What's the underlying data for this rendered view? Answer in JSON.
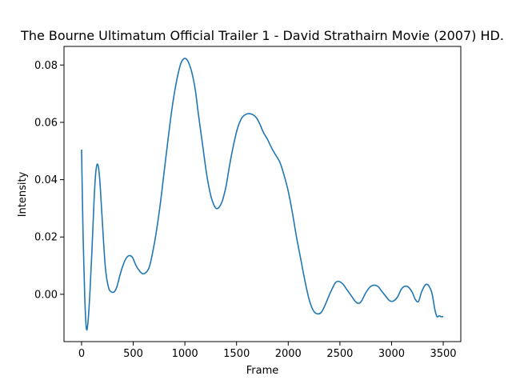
{
  "chart_data": {
    "type": "line",
    "title": "The Bourne Ultimatum Official Trailer 1 - David Strathairn Movie (2007) HD.",
    "xlabel": "Frame",
    "ylabel": "Intensity",
    "xlim": [
      -170,
      3670
    ],
    "ylim": [
      -0.0165,
      0.0865
    ],
    "xticks": [
      0,
      500,
      1000,
      1500,
      2000,
      2500,
      3000,
      3500
    ],
    "xtick_labels": [
      "0",
      "500",
      "1000",
      "1500",
      "2000",
      "2500",
      "3000",
      "3500"
    ],
    "yticks": [
      0.0,
      0.02,
      0.04,
      0.06,
      0.08
    ],
    "ytick_labels": [
      "0.00",
      "0.02",
      "0.04",
      "0.06",
      "0.08"
    ],
    "grid": false,
    "series": [
      {
        "color": "#1f77b4",
        "x": [
          0,
          15,
          30,
          45,
          60,
          80,
          100,
          120,
          135,
          150,
          165,
          180,
          200,
          230,
          260,
          290,
          320,
          345,
          370,
          400,
          430,
          460,
          490,
          510,
          530,
          560,
          590,
          620,
          650,
          670,
          690,
          720,
          760,
          800,
          840,
          880,
          920,
          960,
          990,
          1010,
          1030,
          1050,
          1070,
          1100,
          1130,
          1170,
          1210,
          1250,
          1290,
          1320,
          1350,
          1370,
          1400,
          1430,
          1470,
          1510,
          1550,
          1590,
          1630,
          1670,
          1700,
          1730,
          1760,
          1800,
          1840,
          1880,
          1920,
          1960,
          2000,
          2040,
          2080,
          2120,
          2160,
          2200,
          2240,
          2280,
          2320,
          2360,
          2400,
          2440,
          2460,
          2490,
          2530,
          2570,
          2610,
          2650,
          2680,
          2710,
          2750,
          2790,
          2830,
          2870,
          2900,
          2940,
          2980,
          3020,
          3060,
          3090,
          3120,
          3160,
          3200,
          3230,
          3260,
          3290,
          3320,
          3340,
          3360,
          3390,
          3420,
          3440,
          3460,
          3480,
          3490,
          3500
        ],
        "y": [
          0.0505,
          0.02,
          0.0,
          -0.0115,
          -0.0105,
          0.0,
          0.015,
          0.032,
          0.0415,
          0.0453,
          0.044,
          0.038,
          0.026,
          0.0095,
          0.0025,
          0.0008,
          0.001,
          0.003,
          0.0065,
          0.01,
          0.0125,
          0.0135,
          0.013,
          0.0115,
          0.0098,
          0.0082,
          0.0072,
          0.0075,
          0.009,
          0.0115,
          0.015,
          0.021,
          0.031,
          0.043,
          0.055,
          0.066,
          0.0745,
          0.0805,
          0.0822,
          0.0822,
          0.0813,
          0.0795,
          0.077,
          0.0715,
          0.063,
          0.0525,
          0.042,
          0.0345,
          0.0305,
          0.03,
          0.0315,
          0.0335,
          0.038,
          0.0445,
          0.052,
          0.058,
          0.0615,
          0.0628,
          0.063,
          0.0624,
          0.0612,
          0.059,
          0.0565,
          0.054,
          0.051,
          0.0485,
          0.046,
          0.0415,
          0.036,
          0.0285,
          0.02,
          0.0125,
          0.005,
          -0.0015,
          -0.0055,
          -0.0068,
          -0.0063,
          -0.0035,
          0.0,
          0.003,
          0.0042,
          0.0045,
          0.0035,
          0.0015,
          -0.0005,
          -0.0025,
          -0.0032,
          -0.0023,
          0.0005,
          0.0025,
          0.0032,
          0.0027,
          0.0013,
          -0.0005,
          -0.0022,
          -0.0023,
          -0.0008,
          0.0015,
          0.0027,
          0.0026,
          0.0007,
          -0.0018,
          -0.0025,
          0.0008,
          0.003,
          0.0035,
          0.003,
          0.0005,
          -0.0055,
          -0.0078,
          -0.0075,
          -0.0078,
          -0.0078,
          -0.0078
        ]
      }
    ]
  }
}
